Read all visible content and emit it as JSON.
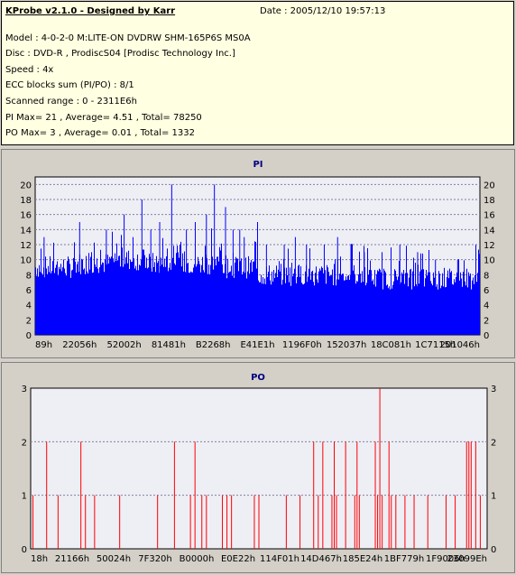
{
  "header": {
    "title": "KProbe v2.1.0 - Designed by Karr",
    "date": "Date : 2005/12/10 19:57:13",
    "lines": [
      "Model : 4-0-2-0 M:LITE-ON DVDRW SHM-165P6S MS0A",
      "Disc : DVD-R , ProdiscS04   [Prodisc Technology Inc.]",
      "Speed : 4x",
      "ECC blocks sum (PI/PO) : 8/1",
      "Scanned range : 0 - 2311E6h",
      "PI Max= 21 , Average= 4.51 , Total= 78250",
      "PO Max= 3 , Average= 0.01 , Total= 1332"
    ]
  },
  "colors": {
    "pi": "#0000ff",
    "po": "#ff0000",
    "plot_bg": "#eeeef5",
    "info_bg": "#ffffe1"
  },
  "chart_data": [
    {
      "type": "area",
      "title": "PI",
      "ylim": [
        0,
        21
      ],
      "yticks": [
        0,
        2,
        4,
        6,
        8,
        10,
        12,
        14,
        16,
        18,
        20
      ],
      "xtick_labels": [
        "89h",
        "22056h",
        "52002h",
        "81481h",
        "B2268h",
        "E41E1h",
        "1196F0h",
        "152037h",
        "18C081h",
        "1C7115h",
        "201046h"
      ],
      "base_level": 9,
      "segment_levels": [
        9,
        9.5,
        10,
        9.5,
        9.5,
        9,
        8,
        8,
        8,
        7.5,
        7.5,
        7.5
      ],
      "peaks": [
        {
          "pos": 0.02,
          "value": 13
        },
        {
          "pos": 0.1,
          "value": 15
        },
        {
          "pos": 0.16,
          "value": 14
        },
        {
          "pos": 0.2,
          "value": 16
        },
        {
          "pos": 0.22,
          "value": 13
        },
        {
          "pos": 0.24,
          "value": 18
        },
        {
          "pos": 0.26,
          "value": 14
        },
        {
          "pos": 0.28,
          "value": 15
        },
        {
          "pos": 0.307,
          "value": 20
        },
        {
          "pos": 0.34,
          "value": 14
        },
        {
          "pos": 0.36,
          "value": 15
        },
        {
          "pos": 0.385,
          "value": 16
        },
        {
          "pos": 0.403,
          "value": 20
        },
        {
          "pos": 0.428,
          "value": 17
        },
        {
          "pos": 0.445,
          "value": 14
        },
        {
          "pos": 0.46,
          "value": 14
        },
        {
          "pos": 0.47,
          "value": 13
        },
        {
          "pos": 0.5,
          "value": 15
        },
        {
          "pos": 0.52,
          "value": 12
        },
        {
          "pos": 0.56,
          "value": 12
        },
        {
          "pos": 0.585,
          "value": 13
        },
        {
          "pos": 0.61,
          "value": 12
        },
        {
          "pos": 0.65,
          "value": 12
        },
        {
          "pos": 0.68,
          "value": 13
        },
        {
          "pos": 0.71,
          "value": 12
        },
        {
          "pos": 0.74,
          "value": 11
        },
        {
          "pos": 0.78,
          "value": 11
        },
        {
          "pos": 0.82,
          "value": 12
        },
        {
          "pos": 0.86,
          "value": 11
        },
        {
          "pos": 0.9,
          "value": 10
        },
        {
          "pos": 0.95,
          "value": 10
        }
      ]
    },
    {
      "type": "bar",
      "title": "PO",
      "ylim": [
        0,
        3
      ],
      "yticks": [
        0,
        1,
        2,
        3
      ],
      "xtick_labels": [
        "18h",
        "21166h",
        "50024h",
        "7F320h",
        "B0000h",
        "E0E22h",
        "114F01h",
        "14D467h",
        "185E24h",
        "1BF779h",
        "1F9006h",
        "23099Eh"
      ],
      "spikes": [
        {
          "pos": 0.005,
          "value": 1
        },
        {
          "pos": 0.035,
          "value": 2
        },
        {
          "pos": 0.06,
          "value": 1
        },
        {
          "pos": 0.11,
          "value": 2
        },
        {
          "pos": 0.12,
          "value": 1
        },
        {
          "pos": 0.14,
          "value": 1
        },
        {
          "pos": 0.195,
          "value": 1
        },
        {
          "pos": 0.278,
          "value": 1
        },
        {
          "pos": 0.315,
          "value": 2
        },
        {
          "pos": 0.35,
          "value": 1
        },
        {
          "pos": 0.36,
          "value": 2
        },
        {
          "pos": 0.375,
          "value": 1
        },
        {
          "pos": 0.385,
          "value": 1
        },
        {
          "pos": 0.42,
          "value": 1
        },
        {
          "pos": 0.43,
          "value": 1
        },
        {
          "pos": 0.44,
          "value": 1
        },
        {
          "pos": 0.49,
          "value": 1
        },
        {
          "pos": 0.5,
          "value": 1
        },
        {
          "pos": 0.56,
          "value": 1
        },
        {
          "pos": 0.59,
          "value": 1
        },
        {
          "pos": 0.62,
          "value": 2
        },
        {
          "pos": 0.63,
          "value": 1
        },
        {
          "pos": 0.64,
          "value": 2
        },
        {
          "pos": 0.66,
          "value": 1
        },
        {
          "pos": 0.665,
          "value": 2
        },
        {
          "pos": 0.67,
          "value": 1
        },
        {
          "pos": 0.69,
          "value": 2
        },
        {
          "pos": 0.71,
          "value": 1
        },
        {
          "pos": 0.715,
          "value": 2
        },
        {
          "pos": 0.72,
          "value": 1
        },
        {
          "pos": 0.76,
          "value": 1
        },
        {
          "pos": 0.77,
          "value": 1
        },
        {
          "pos": 0.79,
          "value": 1
        },
        {
          "pos": 0.755,
          "value": 2
        },
        {
          "pos": 0.765,
          "value": 3
        },
        {
          "pos": 0.785,
          "value": 2
        },
        {
          "pos": 0.8,
          "value": 1
        },
        {
          "pos": 0.82,
          "value": 1
        },
        {
          "pos": 0.84,
          "value": 1
        },
        {
          "pos": 0.87,
          "value": 1
        },
        {
          "pos": 0.91,
          "value": 1
        },
        {
          "pos": 0.93,
          "value": 1
        },
        {
          "pos": 0.955,
          "value": 2
        },
        {
          "pos": 0.96,
          "value": 2
        },
        {
          "pos": 0.965,
          "value": 2
        },
        {
          "pos": 0.975,
          "value": 2
        },
        {
          "pos": 0.985,
          "value": 1
        }
      ]
    }
  ]
}
